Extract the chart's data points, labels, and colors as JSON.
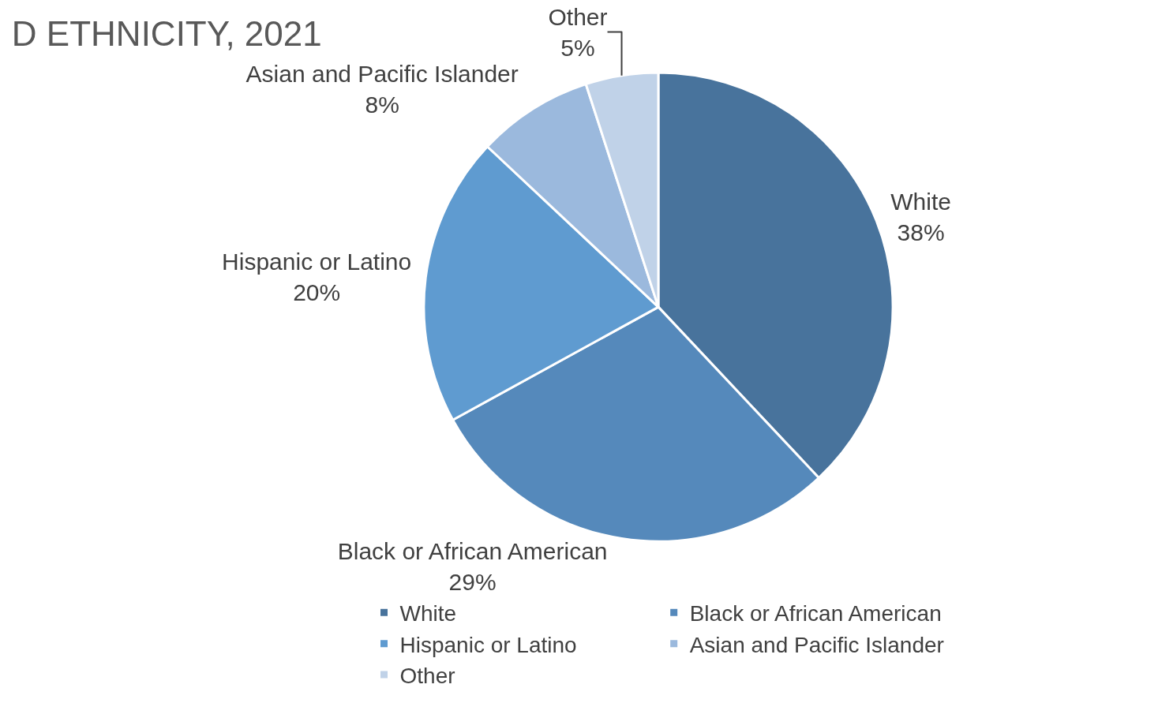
{
  "chart_data": {
    "type": "pie",
    "title": "D ETHNICITY, 2021",
    "categories": [
      "White",
      "Black or African American",
      "Hispanic or Latino",
      "Asian and Pacific Islander",
      "Other"
    ],
    "values": [
      38,
      29,
      20,
      8,
      5
    ],
    "value_labels": [
      "38%",
      "29%",
      "20%",
      "8%",
      "5%"
    ],
    "colors": [
      "#48739c",
      "#5589bb",
      "#5f9bd0",
      "#9bb9dd",
      "#c0d2e8"
    ],
    "legend": "bottom"
  }
}
